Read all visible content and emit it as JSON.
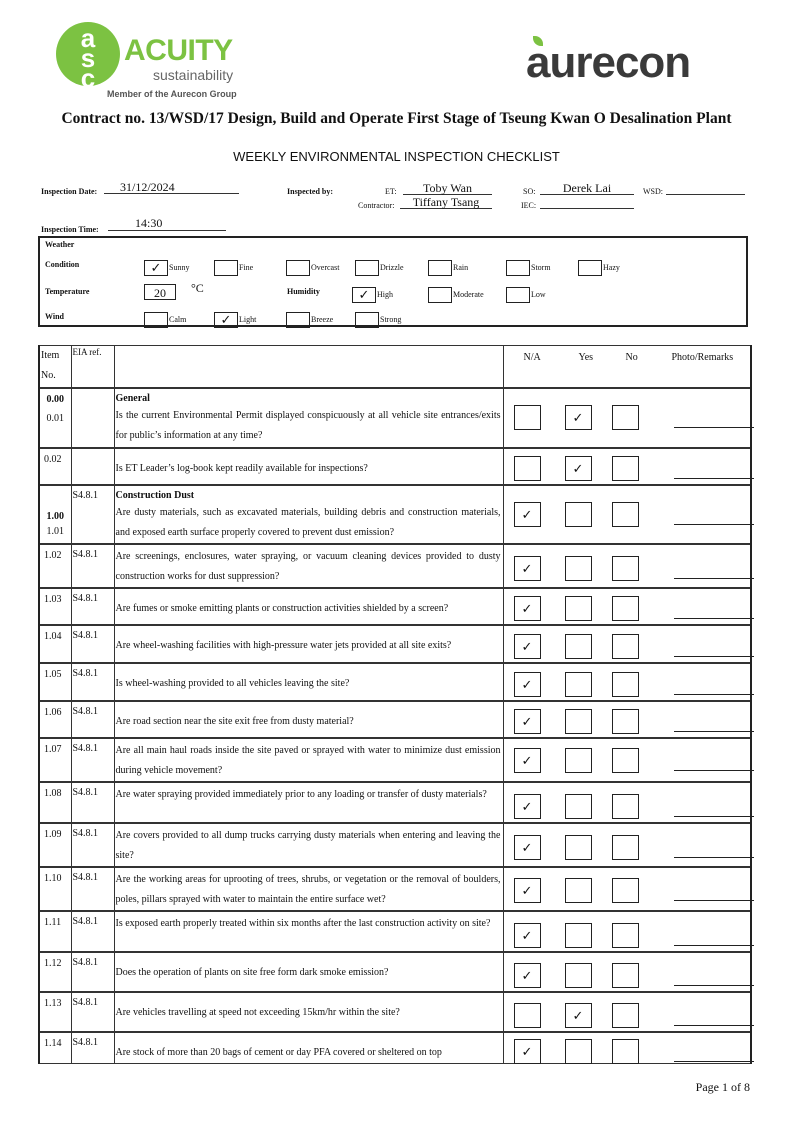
{
  "header": {
    "acuity_logo": "asc",
    "acuity_name": "ACUITY",
    "acuity_sub": "sustainability",
    "member": "Member of the Aurecon Group",
    "aurecon_logo": "aurecon",
    "contract": "Contract no.  13/WSD/17 Design, Build and Operate First Stage of Tseung Kwan O Desalination Plant",
    "title": "WEEKLY ENVIRONMENTAL INSPECTION CHECKLIST"
  },
  "info": {
    "date_label": "Inspection Date:",
    "date": "31/12/2024",
    "by_label": "Inspected by:",
    "et_label": "ET:",
    "et": "Toby Wan",
    "so_label": "SO:",
    "so": "Derek Lai",
    "wsd_label": "WSD:",
    "wsd": "",
    "contractor_label": "Contractor:",
    "contractor": "Tiffany Tsang",
    "iec_label": "IEC:",
    "iec": "",
    "time_label": "Inspection Time:",
    "time": "14:30"
  },
  "weather": {
    "title": "Weather",
    "condition_label": "Condition",
    "conditions": [
      {
        "label": "Sunny",
        "checked": true
      },
      {
        "label": "Fine",
        "checked": false
      },
      {
        "label": "Overcast",
        "checked": false
      },
      {
        "label": "Drizzle",
        "checked": false
      },
      {
        "label": "Rain",
        "checked": false
      },
      {
        "label": "Storm",
        "checked": false
      },
      {
        "label": "Hazy",
        "checked": false
      }
    ],
    "temperature_label": "Temperature",
    "temperature": "20",
    "temp_unit": "°C",
    "humidity_label": "Humidity",
    "humidity": [
      {
        "label": "High",
        "checked": true
      },
      {
        "label": "Moderate",
        "checked": false
      },
      {
        "label": "Low",
        "checked": false
      }
    ],
    "wind_label": "Wind",
    "wind": [
      {
        "label": "Calm",
        "checked": false
      },
      {
        "label": "Light",
        "checked": true
      },
      {
        "label": "Breeze",
        "checked": false
      },
      {
        "label": "Strong",
        "checked": false
      }
    ]
  },
  "table": {
    "headers": {
      "item": "Item No.",
      "eia": "EIA ref.",
      "na": "N/A",
      "yes": "Yes",
      "no": "No",
      "remarks": "Photo/Remarks"
    },
    "rows": [
      {
        "item": "0.00",
        "sub": "0.01",
        "eia": "",
        "section": "General",
        "q": "Is the current Environmental Permit displayed conspicuously at all vehicle site entrances/exits for public’s information at any time?",
        "answer": "yes"
      },
      {
        "item": "0.02",
        "eia": "",
        "q": "Is ET Leader’s log-book kept readily available for inspections?",
        "answer": "yes"
      },
      {
        "item": "1.00",
        "sub": "1.01",
        "eia": "S4.8.1",
        "section": "Construction Dust",
        "q": "Are dusty materials, such as excavated materials, building debris and construction materials, and exposed earth surface properly covered to prevent dust emission?",
        "answer": "na"
      },
      {
        "item": "1.02",
        "eia": "S4.8.1",
        "q": "Are screenings, enclosures, water spraying, or vacuum cleaning devices provided to dusty construction works for dust suppression?",
        "answer": "na"
      },
      {
        "item": "1.03",
        "eia": "S4.8.1",
        "q": "Are fumes or smoke emitting plants or construction activities shielded by a screen?",
        "answer": "na"
      },
      {
        "item": "1.04",
        "eia": "S4.8.1",
        "q": "Are wheel-washing facilities with high-pressure water jets provided at all site exits?",
        "answer": "na"
      },
      {
        "item": "1.05",
        "eia": "S4.8.1",
        "q": "Is wheel-washing provided to all vehicles leaving the site?",
        "answer": "na"
      },
      {
        "item": "1.06",
        "eia": "S4.8.1",
        "q": "Are road section near the site exit free from dusty material?",
        "answer": "na"
      },
      {
        "item": "1.07",
        "eia": "S4.8.1",
        "q": "Are all main haul roads inside the site paved or sprayed with water to minimize dust emission during vehicle movement?",
        "answer": "na"
      },
      {
        "item": "1.08",
        "eia": "S4.8.1",
        "q": "Are water spraying provided immediately prior to any loading or transfer of dusty materials?",
        "answer": "na"
      },
      {
        "item": "1.09",
        "eia": "S4.8.1",
        "q": "Are covers provided to all dump trucks carrying dusty materials when entering and leaving the site?",
        "answer": "na"
      },
      {
        "item": "1.10",
        "eia": "S4.8.1",
        "q": "Are the working areas for uprooting of trees, shrubs, or vegetation or the removal of boulders, poles, pillars sprayed with water to maintain the entire surface wet?",
        "answer": "na"
      },
      {
        "item": "1.11",
        "eia": "S4.8.1",
        "q": "Is exposed earth properly treated within six months after the last construction activity on site?",
        "answer": "na"
      },
      {
        "item": "1.12",
        "eia": "S4.8.1",
        "q": "Does the operation of plants on site free form dark smoke emission?",
        "answer": "na"
      },
      {
        "item": "1.13",
        "eia": "S4.8.1",
        "q": "Are vehicles travelling at speed not exceeding 15km/hr within the site?",
        "answer": "yes"
      },
      {
        "item": "1.14",
        "eia": "S4.8.1",
        "q": "Are stock of more than 20 bags of cement or day PFA covered or sheltered on top",
        "answer": "na"
      }
    ]
  },
  "check_mark": "✓",
  "footer": {
    "page": "Page 1 of 8"
  }
}
